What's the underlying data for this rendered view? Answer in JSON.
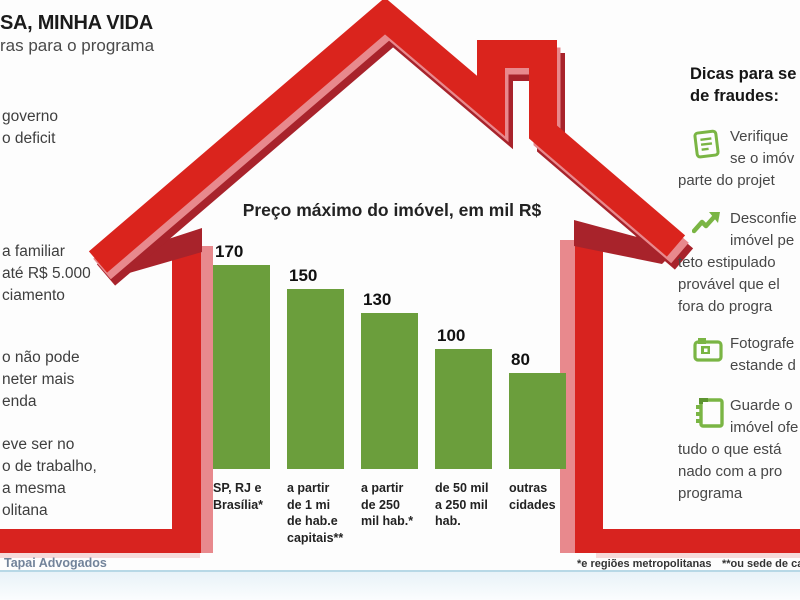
{
  "title": {
    "line1": "SA, MINHA VIDA",
    "line2": "ras para o programa"
  },
  "left_notes": [
    {
      "lines": [
        "governo",
        "o deficit"
      ]
    },
    {
      "lines": [
        "a familiar",
        "até R$ 5.000",
        "ciamento"
      ]
    },
    {
      "lines": [
        "o não pode",
        "neter mais",
        "enda"
      ]
    },
    {
      "lines": [
        "eve ser no",
        "o de trabalho,",
        "a mesma",
        "olitana"
      ]
    }
  ],
  "chart_data": {
    "type": "bar",
    "title": "Preço máximo do imóvel, em mil R$",
    "categories": [
      "SP, RJ e\nBrasília*",
      "a partir\nde 1 mi\nde hab.e\ncapitais**",
      "a partir\nde 250\nmil hab.*",
      "de 50 mil\na 250 mil\nhab.",
      "outras\ncidades"
    ],
    "values": [
      170,
      150,
      130,
      100,
      80
    ],
    "xlabel": "",
    "ylabel": "mil R$",
    "ylim": [
      0,
      180
    ],
    "grid": false,
    "bar_color": "#6b9e3c"
  },
  "tips": {
    "heading_lines": [
      "Dicas para se",
      "de fraudes:"
    ],
    "items": [
      {
        "icon": "document-icon",
        "lines": [
          "Verifique",
          "se o imóv",
          "parte do projet"
        ]
      },
      {
        "icon": "trend-up-icon",
        "lines": [
          "Desconfie",
          "imóvel pe",
          "teto estipulado",
          "provável que el",
          "fora do progra"
        ]
      },
      {
        "icon": "camera-icon",
        "lines": [
          "Fotografe",
          "estande d"
        ]
      },
      {
        "icon": "notebook-icon",
        "lines": [
          "Guarde o",
          "imóvel ofe",
          "tudo o que está",
          "nado com a pro",
          "programa"
        ]
      }
    ]
  },
  "footer": {
    "credit": "Tapai Advogados",
    "footnote1": "*e regiões metropolitanas",
    "footnote2": "**ou sede de ca"
  },
  "colors": {
    "house_red": "#da241d",
    "house_red_dark": "#a8232b",
    "house_red_pink": "#e8898d",
    "bar_green": "#6b9e3c",
    "icon_green": "#7ab544",
    "footer_line_blue": "#b7d8e6"
  }
}
